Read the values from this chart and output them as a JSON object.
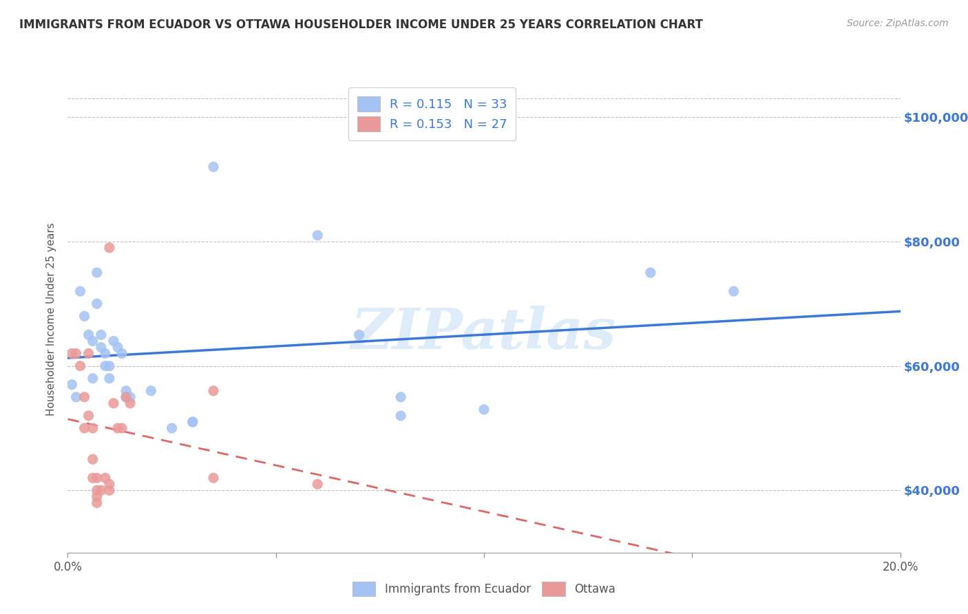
{
  "title": "IMMIGRANTS FROM ECUADOR VS OTTAWA HOUSEHOLDER INCOME UNDER 25 YEARS CORRELATION CHART",
  "source": "Source: ZipAtlas.com",
  "ylabel": "Householder Income Under 25 years",
  "legend_label1": "Immigrants from Ecuador",
  "legend_label2": "Ottawa",
  "r1": 0.115,
  "n1": 33,
  "r2": 0.153,
  "n2": 27,
  "xmin": 0.0,
  "xmax": 0.2,
  "ymin": 30000,
  "ymax": 105000,
  "yticks": [
    40000,
    60000,
    80000,
    100000
  ],
  "ytick_labels": [
    "$40,000",
    "$60,000",
    "$80,000",
    "$100,000"
  ],
  "xticks": [
    0.0,
    0.05,
    0.1,
    0.15,
    0.2
  ],
  "xtick_labels": [
    "0.0%",
    "",
    "",
    "",
    "20.0%"
  ],
  "watermark": "ZIPatlas",
  "blue_color": "#a4c2f4",
  "pink_color": "#ea9999",
  "blue_line_color": "#3c78d8",
  "pink_line_color": "#e06666",
  "right_axis_color": "#3c78d8",
  "scatter_blue": [
    [
      0.001,
      57000
    ],
    [
      0.002,
      55000
    ],
    [
      0.003,
      72000
    ],
    [
      0.004,
      68000
    ],
    [
      0.005,
      65000
    ],
    [
      0.006,
      64000
    ],
    [
      0.006,
      58000
    ],
    [
      0.007,
      75000
    ],
    [
      0.007,
      70000
    ],
    [
      0.008,
      65000
    ],
    [
      0.008,
      63000
    ],
    [
      0.009,
      62000
    ],
    [
      0.009,
      60000
    ],
    [
      0.01,
      60000
    ],
    [
      0.01,
      58000
    ],
    [
      0.011,
      64000
    ],
    [
      0.012,
      63000
    ],
    [
      0.013,
      62000
    ],
    [
      0.014,
      56000
    ],
    [
      0.014,
      55000
    ],
    [
      0.015,
      55000
    ],
    [
      0.02,
      56000
    ],
    [
      0.025,
      50000
    ],
    [
      0.03,
      51000
    ],
    [
      0.03,
      51000
    ],
    [
      0.035,
      92000
    ],
    [
      0.06,
      81000
    ],
    [
      0.07,
      65000
    ],
    [
      0.08,
      55000
    ],
    [
      0.08,
      52000
    ],
    [
      0.1,
      53000
    ],
    [
      0.14,
      75000
    ],
    [
      0.16,
      72000
    ]
  ],
  "scatter_pink": [
    [
      0.001,
      62000
    ],
    [
      0.002,
      62000
    ],
    [
      0.003,
      60000
    ],
    [
      0.004,
      55000
    ],
    [
      0.004,
      50000
    ],
    [
      0.005,
      62000
    ],
    [
      0.005,
      52000
    ],
    [
      0.006,
      50000
    ],
    [
      0.006,
      45000
    ],
    [
      0.006,
      42000
    ],
    [
      0.007,
      42000
    ],
    [
      0.007,
      40000
    ],
    [
      0.007,
      39000
    ],
    [
      0.007,
      38000
    ],
    [
      0.008,
      40000
    ],
    [
      0.009,
      42000
    ],
    [
      0.01,
      41000
    ],
    [
      0.01,
      40000
    ],
    [
      0.01,
      79000
    ],
    [
      0.011,
      54000
    ],
    [
      0.012,
      50000
    ],
    [
      0.013,
      50000
    ],
    [
      0.014,
      55000
    ],
    [
      0.015,
      54000
    ],
    [
      0.035,
      56000
    ],
    [
      0.035,
      42000
    ],
    [
      0.06,
      41000
    ]
  ],
  "background_color": "#ffffff",
  "grid_color": "#c0c0c0"
}
